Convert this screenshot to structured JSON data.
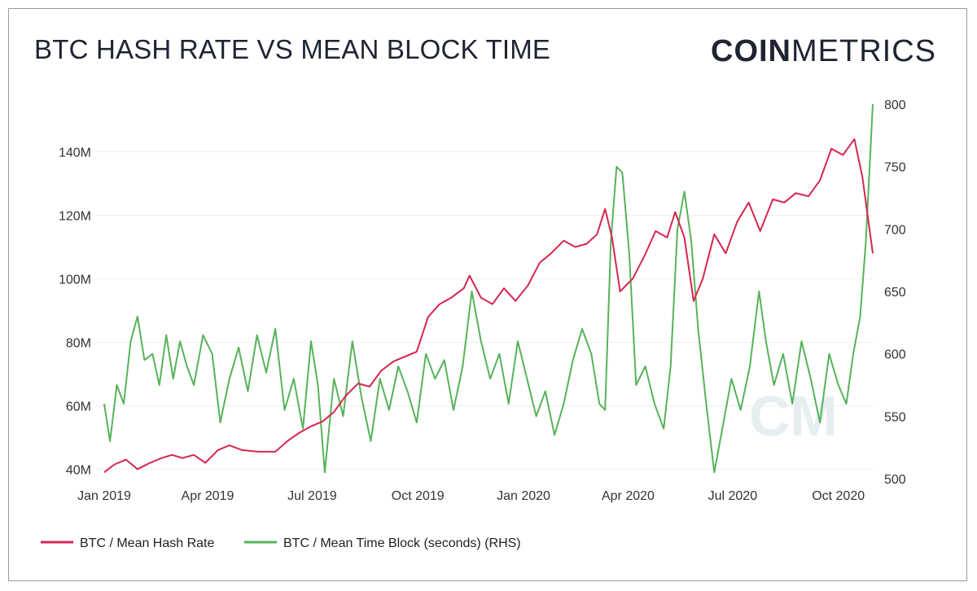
{
  "header": {
    "title": "BTC HASH RATE VS MEAN BLOCK TIME",
    "brand_bold": "COIN",
    "brand_light": "METRICS"
  },
  "chart_data": {
    "type": "line",
    "title": "BTC HASH RATE VS MEAN BLOCK TIME",
    "x_ticks": [
      "Jan 2019",
      "Apr 2019",
      "Jul 2019",
      "Oct 2019",
      "Jan 2020",
      "Apr 2020",
      "Jul 2020",
      "Oct 2020"
    ],
    "y_left": {
      "ticks": [
        "40M",
        "60M",
        "80M",
        "100M",
        "120M",
        "140M"
      ],
      "min": 37000000,
      "max": 155000000
    },
    "y_right": {
      "ticks": [
        "500",
        "550",
        "600",
        "650",
        "700",
        "750",
        "800"
      ],
      "min": 500,
      "max": 800
    },
    "grid": true,
    "legend_position": "bottom-left",
    "x_range": [
      "2019-01-01",
      "2020-10-31"
    ],
    "series": [
      {
        "name": "BTC / Mean Hash Rate",
        "axis": "left",
        "color": "#d6264f",
        "points": [
          [
            "2019-01-01",
            39000000
          ],
          [
            "2019-01-10",
            41500000
          ],
          [
            "2019-01-20",
            43000000
          ],
          [
            "2019-01-30",
            40000000
          ],
          [
            "2019-02-10",
            42000000
          ],
          [
            "2019-02-20",
            43500000
          ],
          [
            "2019-03-01",
            44500000
          ],
          [
            "2019-03-10",
            43500000
          ],
          [
            "2019-03-20",
            44500000
          ],
          [
            "2019-03-30",
            42000000
          ],
          [
            "2019-04-10",
            46000000
          ],
          [
            "2019-04-20",
            47500000
          ],
          [
            "2019-05-01",
            46000000
          ],
          [
            "2019-05-15",
            45500000
          ],
          [
            "2019-05-30",
            45500000
          ],
          [
            "2019-06-10",
            49000000
          ],
          [
            "2019-06-20",
            51500000
          ],
          [
            "2019-06-30",
            53500000
          ],
          [
            "2019-07-10",
            55000000
          ],
          [
            "2019-07-20",
            58000000
          ],
          [
            "2019-07-30",
            63000000
          ],
          [
            "2019-08-10",
            67000000
          ],
          [
            "2019-08-20",
            66000000
          ],
          [
            "2019-08-30",
            71000000
          ],
          [
            "2019-09-10",
            74000000
          ],
          [
            "2019-09-20",
            75500000
          ],
          [
            "2019-09-30",
            77000000
          ],
          [
            "2019-10-10",
            88000000
          ],
          [
            "2019-10-20",
            92000000
          ],
          [
            "2019-10-30",
            94000000
          ],
          [
            "2019-11-10",
            97000000
          ],
          [
            "2019-11-15",
            101000000
          ],
          [
            "2019-11-25",
            94000000
          ],
          [
            "2019-12-05",
            92000000
          ],
          [
            "2019-12-15",
            97000000
          ],
          [
            "2019-12-25",
            93000000
          ],
          [
            "2020-01-05",
            98000000
          ],
          [
            "2020-01-15",
            105000000
          ],
          [
            "2020-01-25",
            108000000
          ],
          [
            "2020-02-05",
            112000000
          ],
          [
            "2020-02-15",
            110000000
          ],
          [
            "2020-02-25",
            111000000
          ],
          [
            "2020-03-05",
            114000000
          ],
          [
            "2020-03-12",
            122000000
          ],
          [
            "2020-03-18",
            113000000
          ],
          [
            "2020-03-25",
            96000000
          ],
          [
            "2020-04-05",
            100000000
          ],
          [
            "2020-04-15",
            107000000
          ],
          [
            "2020-04-25",
            115000000
          ],
          [
            "2020-05-05",
            113000000
          ],
          [
            "2020-05-12",
            121000000
          ],
          [
            "2020-05-20",
            113000000
          ],
          [
            "2020-05-28",
            93000000
          ],
          [
            "2020-06-05",
            100000000
          ],
          [
            "2020-06-15",
            114000000
          ],
          [
            "2020-06-25",
            108000000
          ],
          [
            "2020-07-05",
            118000000
          ],
          [
            "2020-07-15",
            124000000
          ],
          [
            "2020-07-25",
            115000000
          ],
          [
            "2020-08-05",
            125000000
          ],
          [
            "2020-08-15",
            124000000
          ],
          [
            "2020-08-25",
            127000000
          ],
          [
            "2020-09-05",
            126000000
          ],
          [
            "2020-09-15",
            131000000
          ],
          [
            "2020-09-25",
            141000000
          ],
          [
            "2020-10-05",
            139000000
          ],
          [
            "2020-10-15",
            144000000
          ],
          [
            "2020-10-22",
            132000000
          ],
          [
            "2020-10-31",
            108000000
          ]
        ]
      },
      {
        "name": "BTC / Mean Time Block (seconds) (RHS)",
        "axis": "right",
        "color": "#56b35a",
        "points": [
          [
            "2019-01-01",
            560
          ],
          [
            "2019-01-06",
            530
          ],
          [
            "2019-01-12",
            575
          ],
          [
            "2019-01-18",
            560
          ],
          [
            "2019-01-24",
            610
          ],
          [
            "2019-01-30",
            630
          ],
          [
            "2019-02-05",
            595
          ],
          [
            "2019-02-12",
            600
          ],
          [
            "2019-02-18",
            575
          ],
          [
            "2019-02-24",
            615
          ],
          [
            "2019-03-02",
            580
          ],
          [
            "2019-03-08",
            610
          ],
          [
            "2019-03-14",
            590
          ],
          [
            "2019-03-20",
            575
          ],
          [
            "2019-03-28",
            615
          ],
          [
            "2019-04-05",
            600
          ],
          [
            "2019-04-12",
            545
          ],
          [
            "2019-04-20",
            580
          ],
          [
            "2019-04-28",
            605
          ],
          [
            "2019-05-06",
            570
          ],
          [
            "2019-05-14",
            615
          ],
          [
            "2019-05-22",
            585
          ],
          [
            "2019-05-30",
            620
          ],
          [
            "2019-06-07",
            555
          ],
          [
            "2019-06-15",
            580
          ],
          [
            "2019-06-23",
            540
          ],
          [
            "2019-06-30",
            610
          ],
          [
            "2019-07-06",
            575
          ],
          [
            "2019-07-12",
            505
          ],
          [
            "2019-07-20",
            580
          ],
          [
            "2019-07-28",
            550
          ],
          [
            "2019-08-05",
            610
          ],
          [
            "2019-08-13",
            565
          ],
          [
            "2019-08-21",
            530
          ],
          [
            "2019-08-29",
            580
          ],
          [
            "2019-09-06",
            555
          ],
          [
            "2019-09-14",
            590
          ],
          [
            "2019-09-22",
            570
          ],
          [
            "2019-09-30",
            545
          ],
          [
            "2019-10-08",
            600
          ],
          [
            "2019-10-16",
            580
          ],
          [
            "2019-10-24",
            595
          ],
          [
            "2019-11-01",
            555
          ],
          [
            "2019-11-09",
            590
          ],
          [
            "2019-11-17",
            650
          ],
          [
            "2019-11-25",
            610
          ],
          [
            "2019-12-03",
            580
          ],
          [
            "2019-12-11",
            600
          ],
          [
            "2019-12-19",
            560
          ],
          [
            "2019-12-27",
            610
          ],
          [
            "2020-01-04",
            580
          ],
          [
            "2020-01-12",
            550
          ],
          [
            "2020-01-20",
            570
          ],
          [
            "2020-01-28",
            535
          ],
          [
            "2020-02-05",
            560
          ],
          [
            "2020-02-13",
            595
          ],
          [
            "2020-02-21",
            620
          ],
          [
            "2020-02-29",
            600
          ],
          [
            "2020-03-07",
            560
          ],
          [
            "2020-03-12",
            555
          ],
          [
            "2020-03-17",
            690
          ],
          [
            "2020-03-22",
            750
          ],
          [
            "2020-03-27",
            745
          ],
          [
            "2020-04-02",
            680
          ],
          [
            "2020-04-08",
            575
          ],
          [
            "2020-04-16",
            590
          ],
          [
            "2020-04-24",
            560
          ],
          [
            "2020-05-02",
            540
          ],
          [
            "2020-05-08",
            590
          ],
          [
            "2020-05-14",
            700
          ],
          [
            "2020-05-20",
            730
          ],
          [
            "2020-05-26",
            690
          ],
          [
            "2020-06-01",
            620
          ],
          [
            "2020-06-08",
            560
          ],
          [
            "2020-06-15",
            505
          ],
          [
            "2020-06-22",
            540
          ],
          [
            "2020-06-30",
            580
          ],
          [
            "2020-07-08",
            555
          ],
          [
            "2020-07-16",
            590
          ],
          [
            "2020-07-24",
            650
          ],
          [
            "2020-07-30",
            610
          ],
          [
            "2020-08-06",
            575
          ],
          [
            "2020-08-14",
            600
          ],
          [
            "2020-08-22",
            560
          ],
          [
            "2020-08-30",
            610
          ],
          [
            "2020-09-07",
            580
          ],
          [
            "2020-09-15",
            545
          ],
          [
            "2020-09-23",
            600
          ],
          [
            "2020-10-01",
            575
          ],
          [
            "2020-10-08",
            560
          ],
          [
            "2020-10-14",
            600
          ],
          [
            "2020-10-20",
            630
          ],
          [
            "2020-10-25",
            690
          ],
          [
            "2020-10-31",
            800
          ]
        ]
      }
    ]
  },
  "legend": [
    {
      "label": "BTC / Mean Hash Rate",
      "color": "#d6264f"
    },
    {
      "label": "BTC / Mean Time Block (seconds) (RHS)",
      "color": "#56b35a"
    }
  ]
}
